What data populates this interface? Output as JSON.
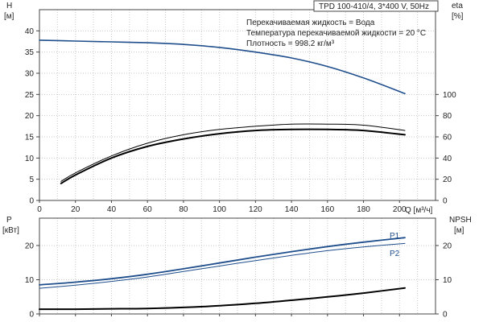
{
  "chart_data": [
    {
      "type": "line",
      "title": "TPD 100-410/4, 3*400 V, 50Hz",
      "annotations": [
        "Перекачиваемая жидкость = Вода",
        "Температура перекачиваемой жидкости = 20 °C",
        "Плотность = 998.2 кг/м³"
      ],
      "xlabel": "Q [м³/ч]",
      "xlim": [
        0,
        220
      ],
      "x_ticks": [
        0,
        20,
        40,
        60,
        80,
        100,
        120,
        140,
        160,
        180,
        200
      ],
      "left_axis": {
        "label": "H",
        "unit": "[м]",
        "ylim": [
          0,
          45
        ],
        "ticks": [
          0,
          5,
          10,
          15,
          20,
          25,
          30,
          35,
          40
        ]
      },
      "right_axis": {
        "label": "eta",
        "unit": "[%]",
        "ylim": [
          0,
          180
        ],
        "ticks": [
          0,
          20,
          40,
          60,
          80,
          100
        ]
      },
      "grid": true,
      "colors": {
        "head": "#1f4e8c",
        "efficiency": "#000000"
      },
      "series": [
        {
          "axis": "left",
          "x": [
            0,
            20,
            40,
            60,
            80,
            100,
            120,
            140,
            160,
            180,
            203
          ],
          "y": [
            37.8,
            37.6,
            37.4,
            37.2,
            36.8,
            36.1,
            35.0,
            33.6,
            31.6,
            28.9,
            25.2
          ]
        },
        {
          "axis": "right",
          "x": [
            12,
            20,
            40,
            60,
            80,
            100,
            120,
            140,
            160,
            180,
            203
          ],
          "y": [
            18,
            26,
            42,
            54,
            62,
            67,
            70,
            72,
            72,
            71,
            66
          ]
        },
        {
          "axis": "right",
          "x": [
            12,
            20,
            40,
            60,
            80,
            100,
            120,
            140,
            160,
            180,
            203
          ],
          "y": [
            16,
            24,
            40,
            51,
            58,
            63,
            66,
            67,
            67,
            66,
            62
          ]
        }
      ]
    },
    {
      "type": "line",
      "xlim": [
        0,
        220
      ],
      "left_axis": {
        "label": "P",
        "unit": "[кВт]",
        "ylim": [
          0,
          28
        ],
        "ticks": [
          0,
          10,
          20
        ]
      },
      "right_axis": {
        "label": "NPSH",
        "unit": "[м]",
        "ylim": [
          0,
          28
        ],
        "ticks": [
          0,
          10,
          20
        ]
      },
      "grid": true,
      "colors": {
        "power": "#1f4e8c",
        "npsh": "#000000"
      },
      "series": [
        {
          "name": "P1",
          "axis": "left",
          "x": [
            0,
            20,
            40,
            60,
            80,
            100,
            120,
            140,
            160,
            180,
            203
          ],
          "y": [
            8.5,
            9.3,
            10.3,
            11.6,
            13.2,
            14.9,
            16.6,
            18.2,
            19.7,
            21.0,
            22.3
          ]
        },
        {
          "name": "P2",
          "axis": "left",
          "x": [
            0,
            20,
            40,
            60,
            80,
            100,
            120,
            140,
            160,
            180,
            203
          ],
          "y": [
            7.5,
            8.4,
            9.5,
            10.8,
            12.4,
            14.0,
            15.6,
            17.1,
            18.5,
            19.6,
            20.6
          ]
        },
        {
          "axis": "right",
          "x": [
            0,
            20,
            40,
            60,
            80,
            100,
            120,
            140,
            160,
            180,
            203
          ],
          "y": [
            1.4,
            1.4,
            1.5,
            1.6,
            1.9,
            2.4,
            3.1,
            4.0,
            5.0,
            6.1,
            7.6
          ]
        }
      ]
    }
  ]
}
